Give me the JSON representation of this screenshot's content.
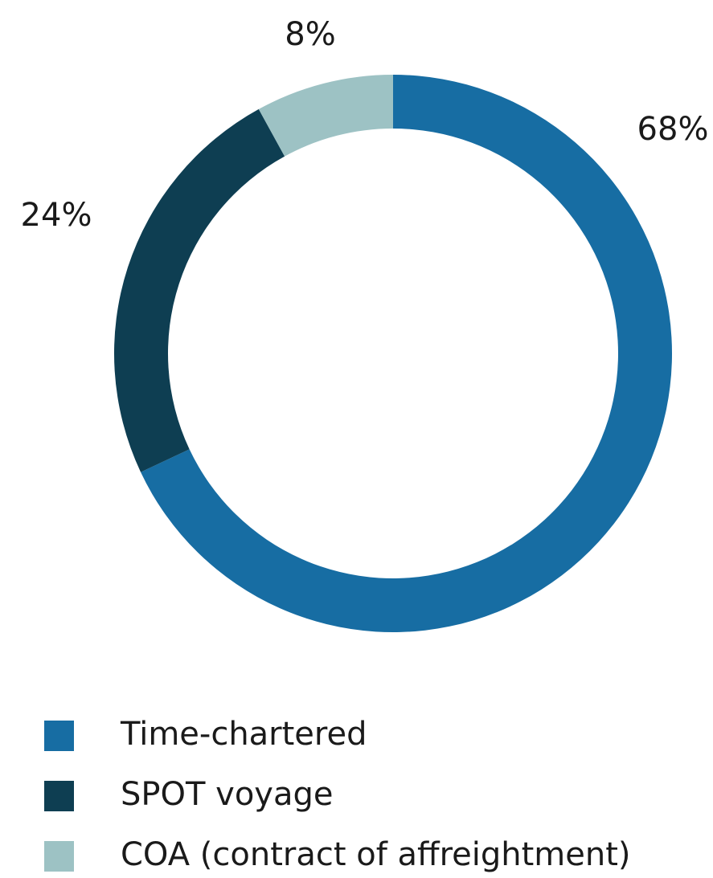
{
  "chart_data": {
    "type": "donut",
    "categories": [
      "Time-chartered",
      "SPOT voyage",
      "COA (contract of affreightment)"
    ],
    "values": [
      68,
      24,
      8
    ],
    "value_labels": [
      "68%",
      "24%",
      "8%"
    ],
    "colors": [
      "#176da3",
      "#0e3e52",
      "#9dc2c4"
    ],
    "legend": "bottom-left"
  }
}
